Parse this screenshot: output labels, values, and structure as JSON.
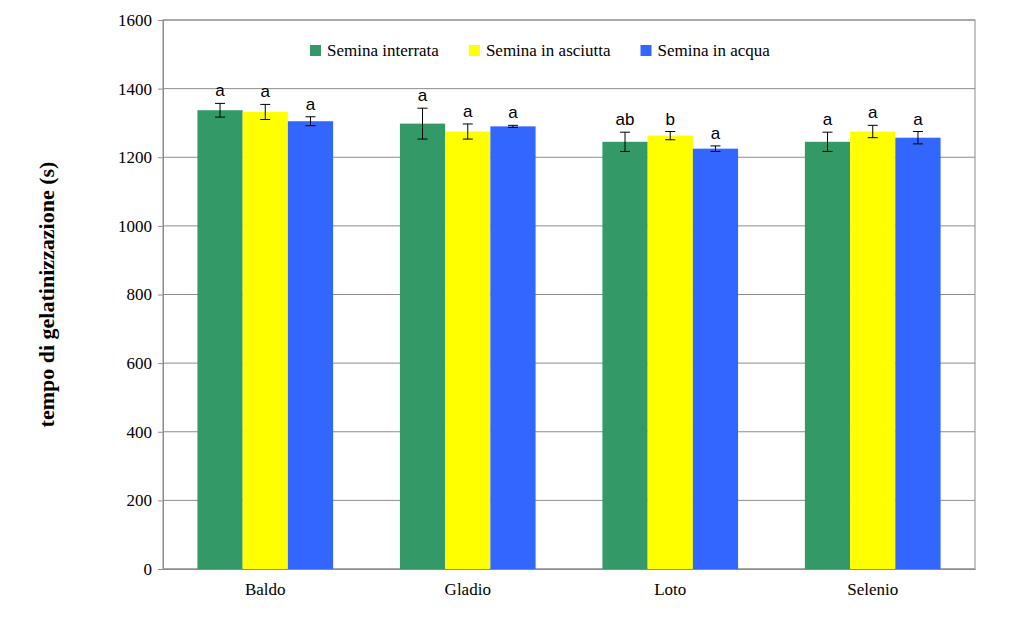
{
  "chart_data": {
    "type": "bar",
    "y_label": "tempo di gelatinizzazione (s)",
    "categories": [
      "Baldo",
      "Gladio",
      "Loto",
      "Selenio"
    ],
    "series": [
      {
        "name": "Semina interrata",
        "color": "#339966",
        "values": [
          1337,
          1298,
          1245,
          1245
        ],
        "errors": [
          20,
          45,
          28,
          28
        ],
        "letters": [
          "a",
          "a",
          "ab",
          "a"
        ]
      },
      {
        "name": "Semina in asciutta",
        "color": "#ffff00",
        "values": [
          1332,
          1275,
          1263,
          1275
        ],
        "errors": [
          22,
          22,
          12,
          18
        ],
        "letters": [
          "a",
          "a",
          "b",
          "a"
        ]
      },
      {
        "name": "Semina in acqua",
        "color": "#3366ff",
        "values": [
          1305,
          1290,
          1225,
          1257
        ],
        "errors": [
          13,
          3,
          8,
          18
        ],
        "letters": [
          "a",
          "a",
          "a",
          "a"
        ]
      }
    ],
    "ylim": [
      0,
      1600
    ],
    "yticks": [
      0,
      200,
      400,
      600,
      800,
      1000,
      1200,
      1400,
      1600
    ],
    "grid": true,
    "legend": "top"
  }
}
